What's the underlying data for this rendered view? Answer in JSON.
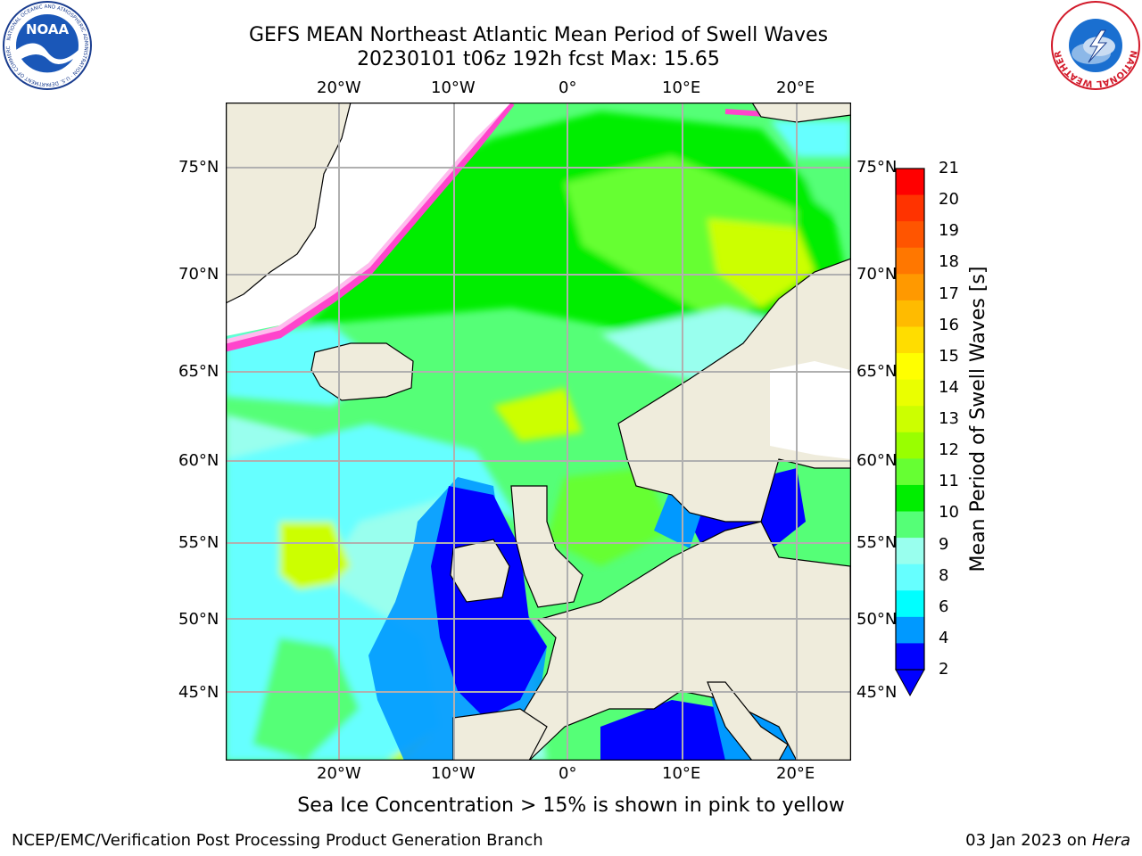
{
  "header": {
    "title_line1": "GEFS MEAN Northeast Atlantic Mean Period of Swell Waves",
    "title_line2": "20230101 t06z 192h fcst   Max: 15.65"
  },
  "logos": {
    "left": {
      "name": "noaa-logo",
      "text": "NOAA",
      "ring_text": "NATIONAL OCEANIC AND ATMOSPHERIC ADMINISTRATION · U.S. DEPARTMENT OF COMMERCE"
    },
    "right": {
      "name": "nws-logo",
      "ring_text": "NATIONAL WEATHER SERVICE"
    }
  },
  "map": {
    "lon_ticks": [
      "20°W",
      "10°W",
      "0°",
      "10°E",
      "20°E"
    ],
    "lat_ticks": [
      "75°N",
      "70°N",
      "65°N",
      "60°N",
      "55°N",
      "50°N",
      "45°N"
    ],
    "colors": {
      "land": "#efecdc",
      "coast": "#000000",
      "grid": "#b0b0b0"
    }
  },
  "colorbar": {
    "label": "Mean Period of Swell Waves [s]",
    "ticks": [
      "21",
      "20",
      "19",
      "18",
      "17",
      "16",
      "15",
      "14",
      "13",
      "12",
      "11",
      "10",
      "9",
      "8",
      "6",
      "4",
      "2"
    ],
    "colors_top_to_bottom": [
      "#ff0000",
      "#ff3300",
      "#ff5500",
      "#ff7700",
      "#ff9900",
      "#ffbb00",
      "#ffdd00",
      "#ffff00",
      "#eaff00",
      "#ccff00",
      "#99ff00",
      "#66ff33",
      "#00ee00",
      "#55ff77",
      "#99ffee",
      "#66ffff",
      "#00ffff",
      "#0099ff",
      "#0000ff"
    ]
  },
  "note": "Sea Ice Concentration > 15% is shown in pink to yellow",
  "footer": {
    "left": "NCEP/EMC/Verification Post Processing Product Generation Branch",
    "right_prefix": "03 Jan 2023 on ",
    "right_host": "Hera"
  }
}
